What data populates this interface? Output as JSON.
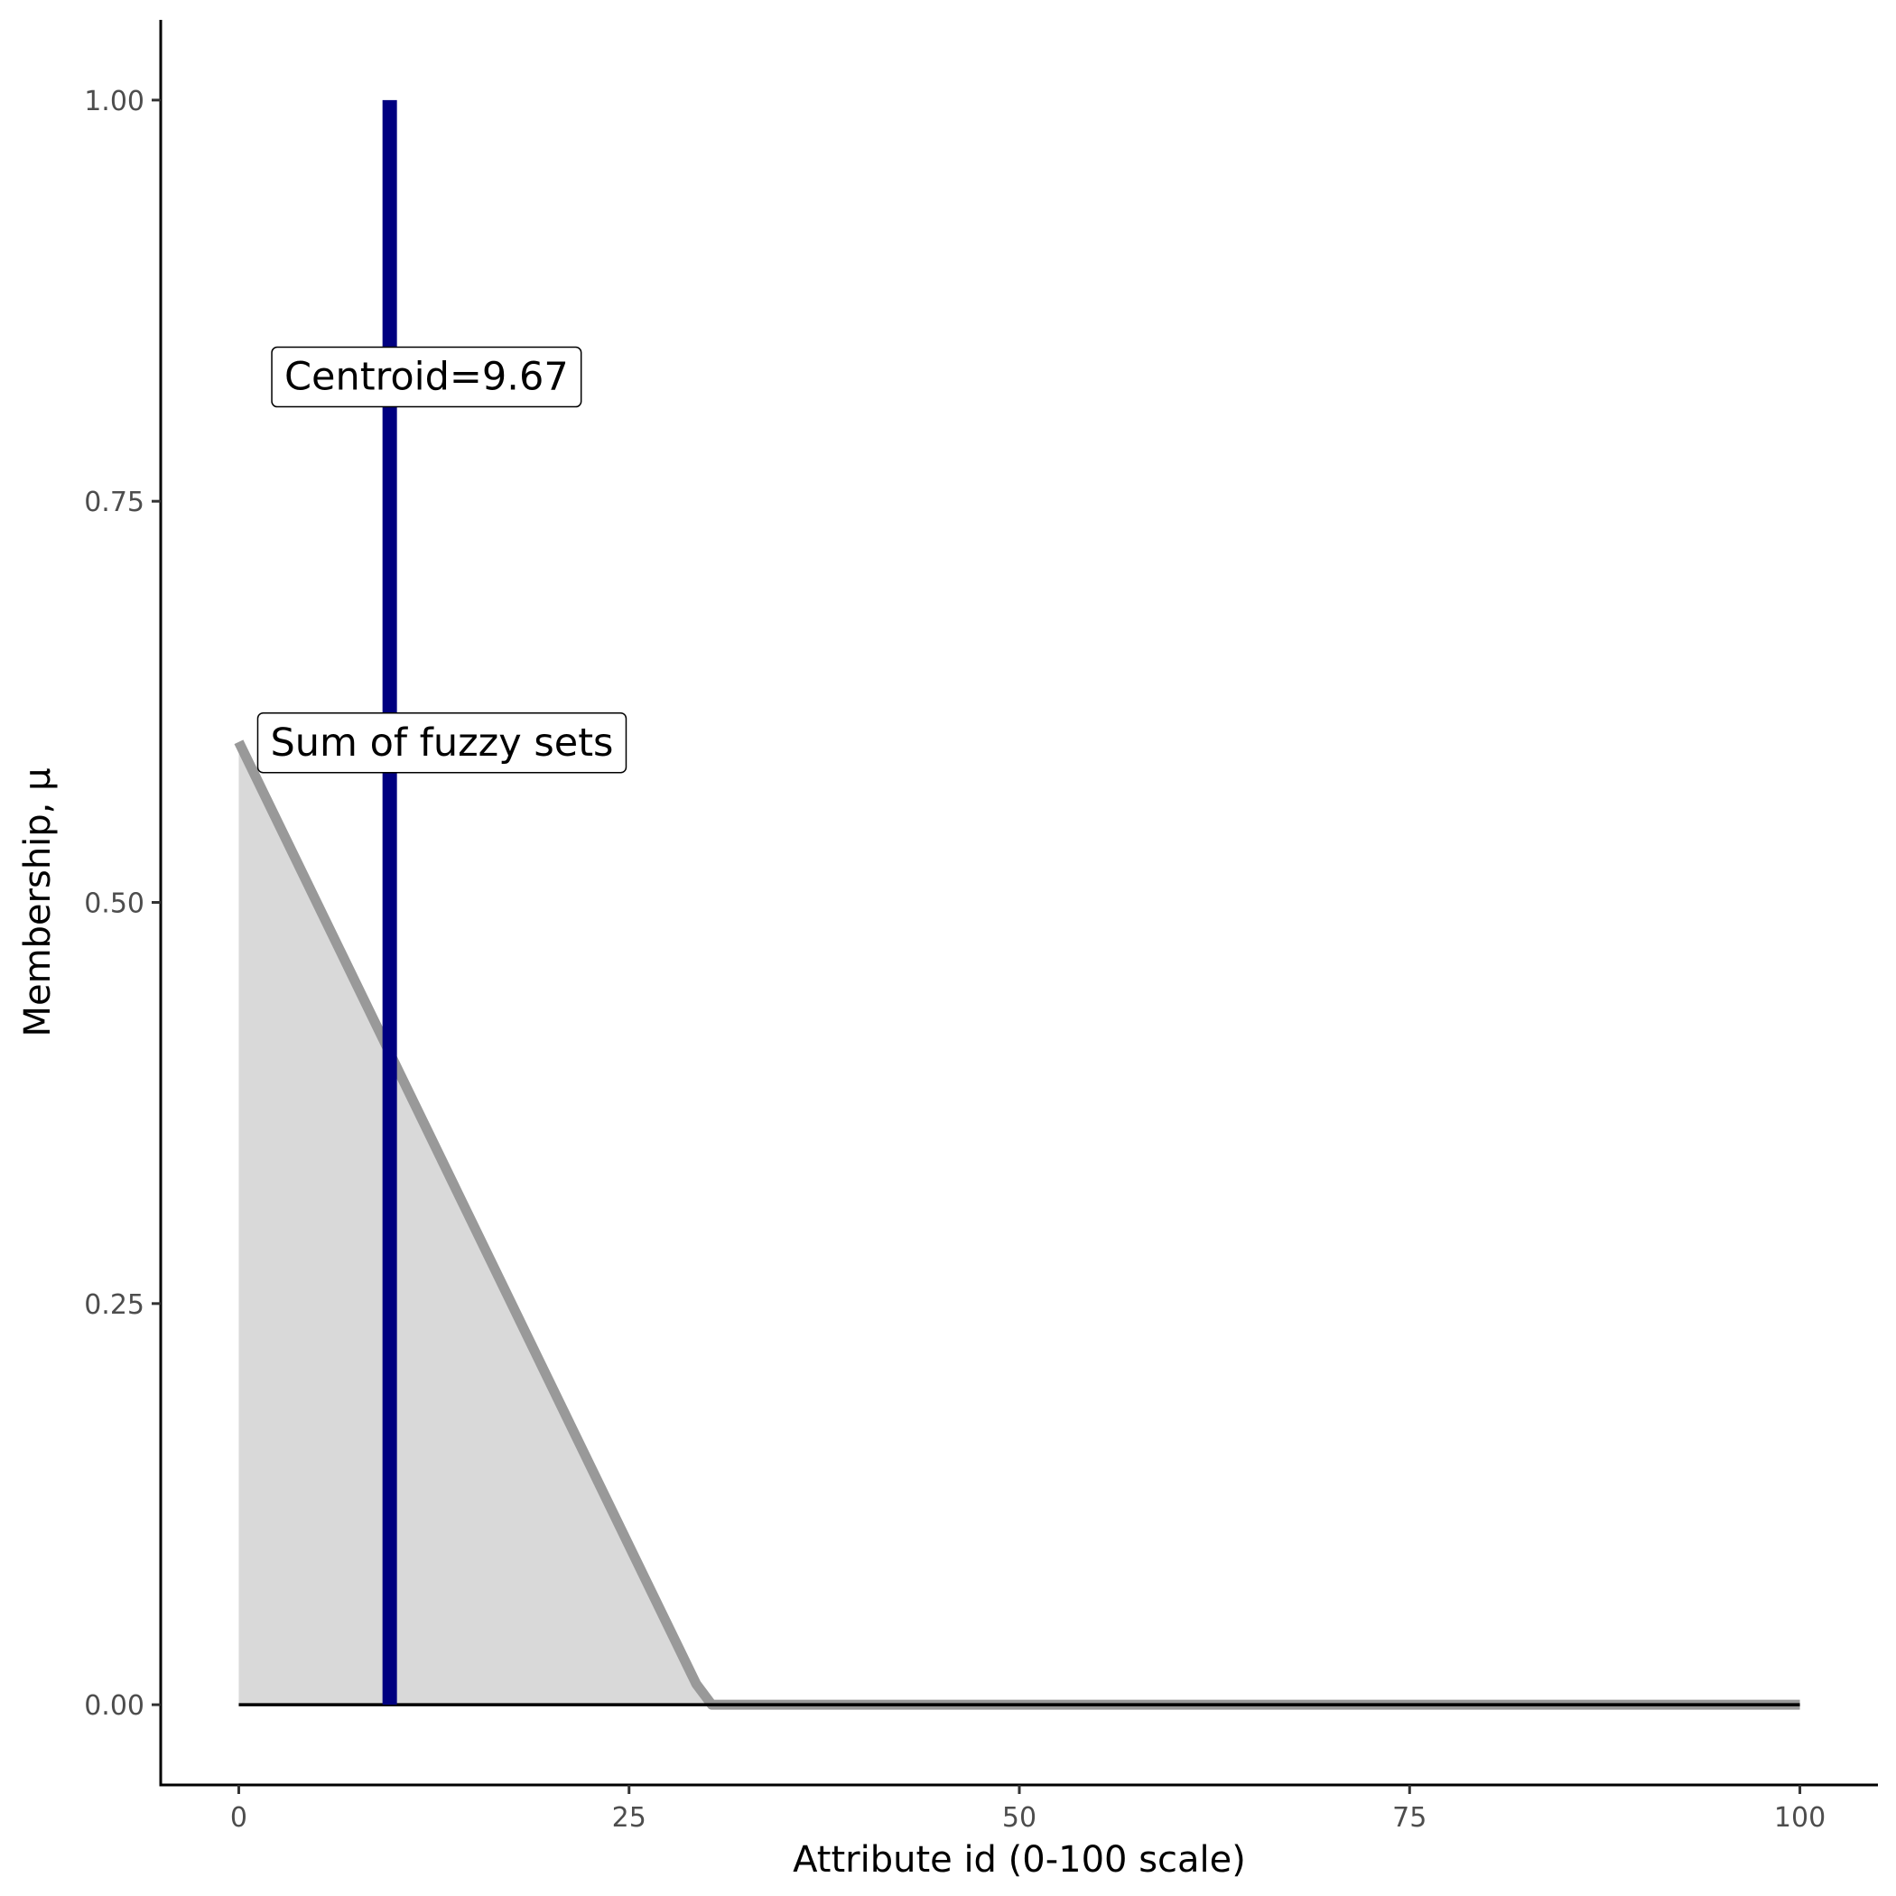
{
  "chart_data": {
    "type": "area",
    "title": "",
    "xlabel": "Attribute id (0-100 scale)",
    "ylabel": "Membership, μ",
    "xlim": [
      -5,
      105
    ],
    "ylim": [
      -0.05,
      1.05
    ],
    "x_ticks": [
      0,
      25,
      50,
      75,
      100
    ],
    "x_tick_labels": [
      "0",
      "25",
      "50",
      "75",
      "100"
    ],
    "y_ticks": [
      0,
      0.25,
      0.5,
      0.75,
      1
    ],
    "y_tick_labels": [
      "0.00",
      "0.25",
      "0.50",
      "0.75",
      "1.00"
    ],
    "grid": false,
    "legend": "none",
    "series": [
      {
        "x": [
          0,
          29.3,
          30.3,
          100
        ],
        "y": [
          0.6,
          0.013,
          0,
          0
        ],
        "color": "#999999",
        "fill": "#d9d9d9"
      }
    ],
    "baseline": {
      "y": 0,
      "x_range": [
        0,
        100
      ],
      "color": "#000000"
    },
    "centroid": {
      "x": 9.67,
      "y_range": [
        0,
        1
      ],
      "color": "#000080"
    },
    "annotations": [
      {
        "text": "Centroid=9.67",
        "x": 2,
        "y": 0.828,
        "anchor": "start"
      },
      {
        "text": "Sum of fuzzy sets",
        "x": 1.1,
        "y": 0.6,
        "anchor": "start"
      }
    ]
  }
}
